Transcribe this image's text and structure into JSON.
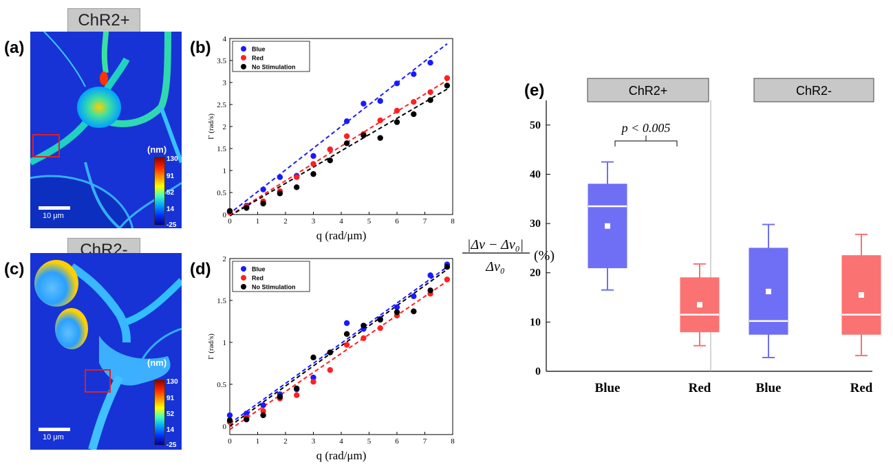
{
  "panels": {
    "a": {
      "label": "(a)",
      "tag": "ChR2+",
      "unit": "(nm)",
      "scale": "10 μm",
      "cbar": [
        "130",
        "91",
        "52",
        "14",
        "-25"
      ]
    },
    "c": {
      "label": "(c)",
      "tag": "ChR2-",
      "unit": "(nm)",
      "scale": "10 μm",
      "cbar": [
        "130",
        "91",
        "52",
        "14",
        "-25"
      ]
    },
    "b": {
      "label": "(b)"
    },
    "d": {
      "label": "(d)"
    },
    "e": {
      "label": "(e)"
    }
  },
  "colors": {
    "blue": "#1a1aff",
    "red": "#ff2020",
    "black": "#000000",
    "box_blue": "#6f6ff5",
    "box_red": "#fa7272"
  },
  "chart_data": [
    {
      "id": "b",
      "type": "scatter",
      "xlabel": "q (rad/μm)",
      "ylabel": "Γ (rad/s)",
      "xlim": [
        0,
        8
      ],
      "ylim": [
        0,
        4
      ],
      "xticks": [
        "0",
        "1",
        "2",
        "3",
        "4",
        "5",
        "6",
        "7",
        "8"
      ],
      "yticks": [
        "0",
        "0.5",
        "1",
        "1.5",
        "2",
        "2.5",
        "3",
        "3.5",
        "4"
      ],
      "legend_position": "top-left",
      "series": [
        {
          "name": "Blue",
          "color": "#1a1aff",
          "x": [
            0,
            0.6,
            1.2,
            1.8,
            2.4,
            3.0,
            3.6,
            4.2,
            4.8,
            5.4,
            6.0,
            6.6,
            7.2
          ],
          "y": [
            0.05,
            0.2,
            0.57,
            0.85,
            0.88,
            1.33,
            1.48,
            2.12,
            2.52,
            2.58,
            2.98,
            3.19,
            3.45
          ],
          "fit": [
            [
              -0.05,
              0
            ],
            [
              7.8,
              3.88
            ]
          ]
        },
        {
          "name": "Red",
          "color": "#ff2020",
          "x": [
            0,
            0.6,
            1.2,
            1.8,
            2.4,
            3.0,
            3.6,
            4.2,
            4.8,
            5.4,
            6.0,
            6.6,
            7.2,
            7.8
          ],
          "y": [
            0.05,
            0.18,
            0.3,
            0.53,
            0.85,
            1.15,
            1.48,
            1.78,
            1.83,
            2.14,
            2.36,
            2.56,
            2.78,
            3.1
          ],
          "fit": [
            [
              0,
              -0.02
            ],
            [
              7.8,
              3.05
            ]
          ]
        },
        {
          "name": "No Stimulation",
          "color": "#000000",
          "x": [
            0,
            0.6,
            1.2,
            1.8,
            2.4,
            3.0,
            3.6,
            4.2,
            4.8,
            5.4,
            6.0,
            6.6,
            7.2,
            7.8
          ],
          "y": [
            0.08,
            0.15,
            0.25,
            0.48,
            0.62,
            0.92,
            1.23,
            1.62,
            1.8,
            1.74,
            2.1,
            2.28,
            2.6,
            2.93
          ],
          "fit": [
            [
              0,
              -0.03
            ],
            [
              7.8,
              2.85
            ]
          ]
        }
      ]
    },
    {
      "id": "d",
      "type": "scatter",
      "xlabel": "q (rad/μm)",
      "ylabel": "Γ (rad/s)",
      "xlim": [
        0,
        8
      ],
      "ylim": [
        -0.1,
        2
      ],
      "xticks": [
        "0",
        "1",
        "2",
        "3",
        "4",
        "5",
        "6",
        "7",
        "8"
      ],
      "yticks": [
        "0",
        "0.5",
        "1",
        "1.5",
        "2"
      ],
      "legend_position": "top-left",
      "series": [
        {
          "name": "Blue",
          "color": "#1a1aff",
          "x": [
            0,
            0.6,
            1.2,
            1.8,
            2.4,
            3.0,
            3.6,
            4.2,
            4.8,
            5.4,
            6.0,
            6.6,
            7.2,
            7.8
          ],
          "y": [
            0.13,
            0.15,
            0.25,
            0.38,
            0.44,
            0.58,
            0.88,
            1.23,
            1.16,
            1.28,
            1.42,
            1.55,
            1.8,
            1.93
          ],
          "fit": [
            [
              0,
              0.03
            ],
            [
              7.8,
              1.9
            ]
          ]
        },
        {
          "name": "Red",
          "color": "#ff2020",
          "x": [
            0,
            0.6,
            1.2,
            1.8,
            2.4,
            3.0,
            3.6,
            4.2,
            4.8,
            5.4,
            6.0,
            6.6,
            7.2,
            7.8
          ],
          "y": [
            0.05,
            0.1,
            0.18,
            0.33,
            0.37,
            0.53,
            0.67,
            0.97,
            1.05,
            1.17,
            1.32,
            1.37,
            1.58,
            1.75
          ],
          "fit": [
            [
              0,
              -0.04
            ],
            [
              7.8,
              1.73
            ]
          ]
        },
        {
          "name": "No Stimulation",
          "color": "#000000",
          "x": [
            0,
            0.6,
            1.2,
            1.8,
            2.4,
            3.0,
            3.6,
            4.2,
            4.8,
            5.4,
            6.0,
            6.6,
            7.2,
            7.8
          ],
          "y": [
            0.07,
            0.08,
            0.13,
            0.35,
            0.45,
            0.82,
            0.88,
            1.1,
            1.2,
            1.27,
            1.36,
            1.37,
            1.62,
            1.9
          ],
          "fit": [
            [
              0,
              0.0
            ],
            [
              7.8,
              1.87
            ]
          ]
        }
      ]
    },
    {
      "id": "e",
      "type": "box",
      "ylabel_num": "|Δν − Δν₀|",
      "ylabel_den": "Δν₀",
      "ylabel_unit": "(%)",
      "ylim": [
        0,
        55
      ],
      "yticks": [
        "0",
        "10",
        "20",
        "30",
        "40",
        "50"
      ],
      "groups": [
        {
          "name": "ChR2+",
          "boxes": [
            {
              "category": "Blue",
              "color": "#6f6ff5",
              "whisker_low": 16.5,
              "q1": 21,
              "median": 33.5,
              "q3": 38,
              "whisker_high": 42.5,
              "mean": 29.5
            },
            {
              "category": "Red",
              "color": "#fa7272",
              "whisker_low": 5.2,
              "q1": 8,
              "median": 11.5,
              "q3": 19,
              "whisker_high": 21.8,
              "mean": 13.5
            }
          ]
        },
        {
          "name": "ChR2-",
          "boxes": [
            {
              "category": "Blue",
              "color": "#6f6ff5",
              "whisker_low": 2.8,
              "q1": 7.5,
              "median": 10.2,
              "q3": 25,
              "whisker_high": 29.8,
              "mean": 16.2
            },
            {
              "category": "Red",
              "color": "#fa7272",
              "whisker_low": 3.2,
              "q1": 7.5,
              "median": 11.5,
              "q3": 23.5,
              "whisker_high": 27.8,
              "mean": 15.5
            }
          ]
        }
      ],
      "annotation": "p < 0.005"
    }
  ]
}
